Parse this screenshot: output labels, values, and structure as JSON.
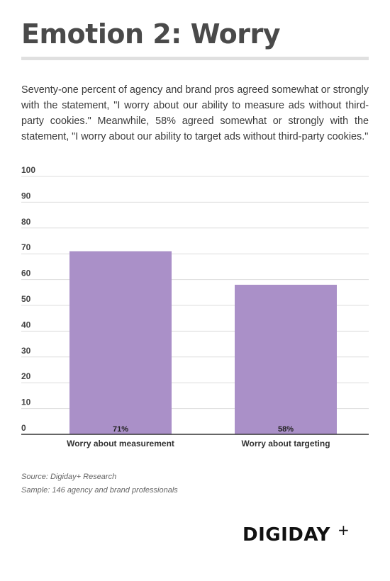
{
  "title": "Emotion 2: Worry",
  "intro": "Seventy-one percent of agency and brand pros agreed somewhat or strongly with the statement, \"I worry about our ability to measure ads without third-party cookies.\" Meanwhile, 58% agreed somewhat or strongly with the statement, \"I worry about our ability to target ads without third-party cookies.\"",
  "chart_data": {
    "type": "bar",
    "categories": [
      "Worry about measurement",
      "Worry about targeting"
    ],
    "values": [
      71,
      58
    ],
    "data_labels": [
      "71%",
      "58%"
    ],
    "ylim": [
      0,
      100
    ],
    "yticks": [
      "0",
      "10",
      "20",
      "30",
      "40",
      "50",
      "60",
      "70",
      "80",
      "90",
      "100"
    ],
    "grid": true,
    "legend": "none",
    "bar_color": "#aa90c8"
  },
  "source": "Source: Digiday+ Research",
  "sample": "Sample: 146 agency and brand professionals",
  "logo": {
    "text": "DIGIDAY",
    "plus": "+"
  }
}
